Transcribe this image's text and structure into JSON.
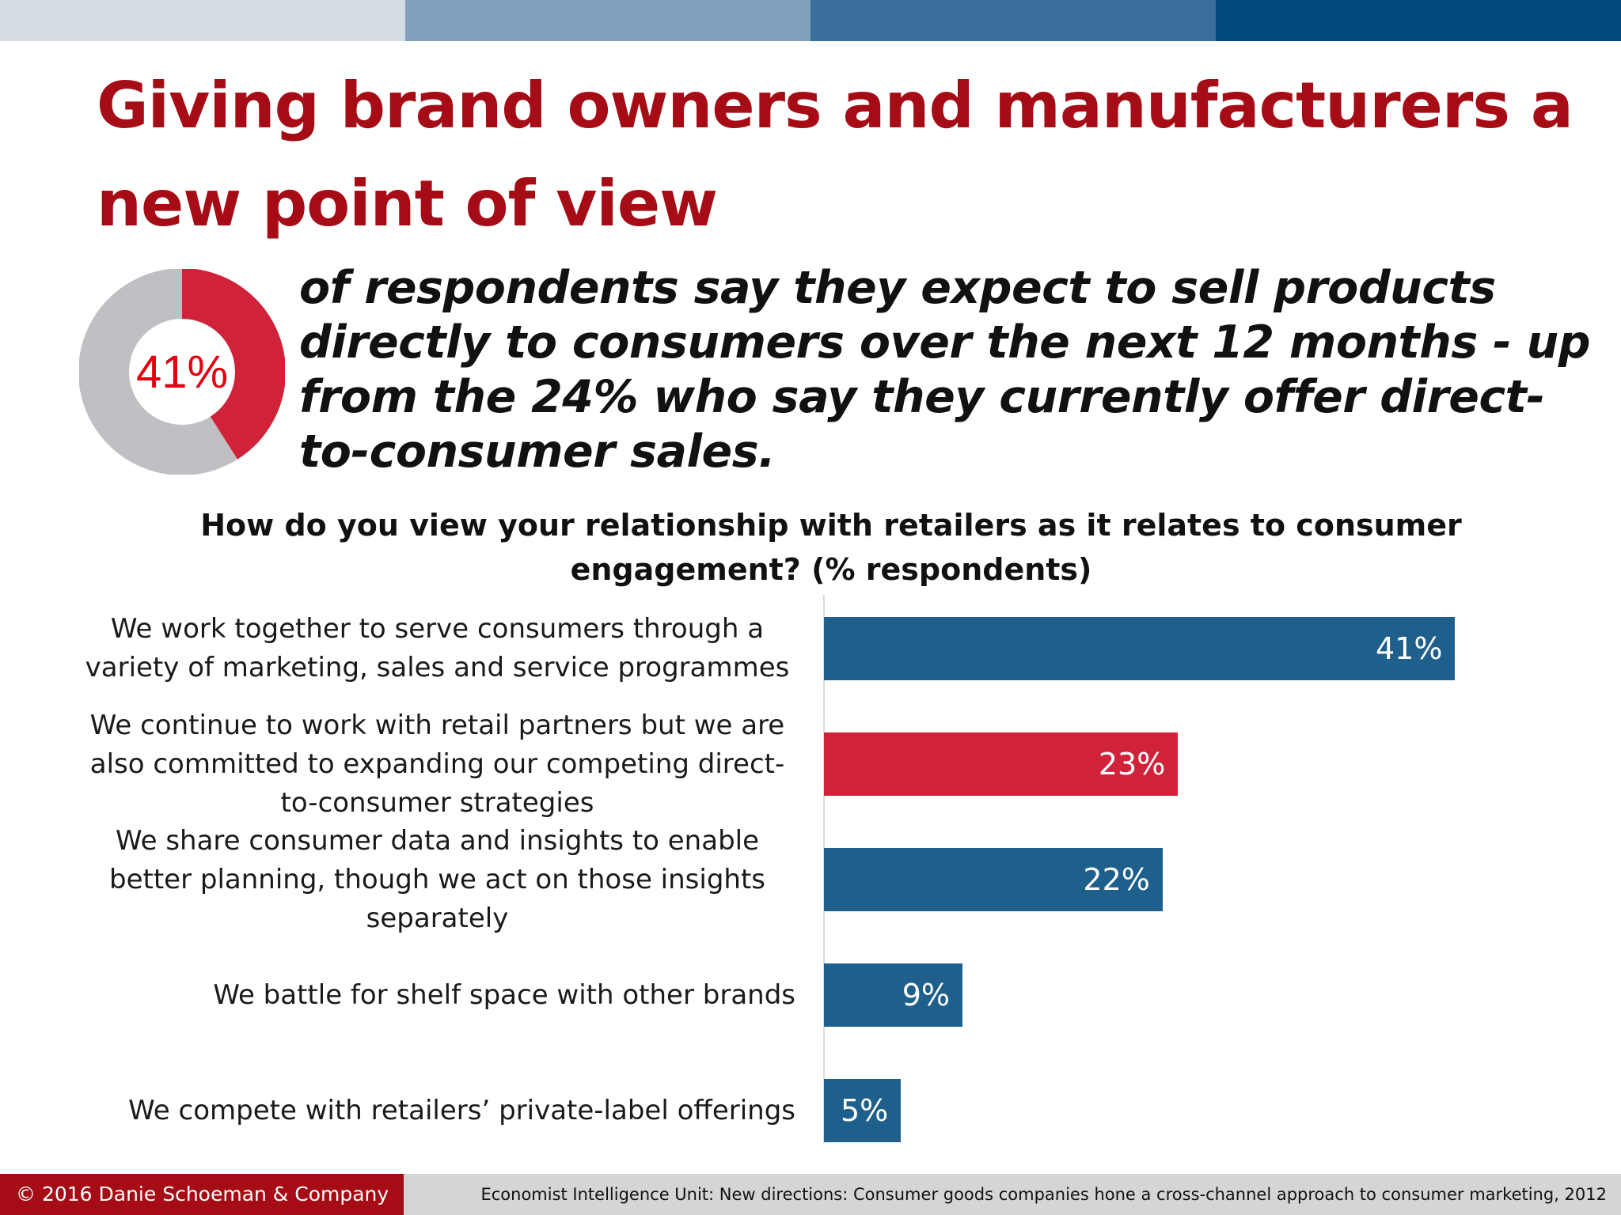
{
  "colors": {
    "title": "#a50c15",
    "bar_default": "#1f5f8b",
    "bar_highlight": "#d0233a",
    "donut_filled": "#d0233a",
    "donut_rest": "#c0bfc3",
    "band": [
      "#d4dce4",
      "#7fa1bf",
      "#3a6e9b",
      "#024a7e"
    ]
  },
  "slide": {
    "title": "Giving brand owners and manufacturers a new point of view"
  },
  "stat": {
    "value": 41,
    "label": "41%",
    "text": "of respondents say they expect to sell products directly to consumers over the next 12 months - up from the 24% who say they currently offer direct-to-consumer sales."
  },
  "chart_data": {
    "type": "bar",
    "orientation": "horizontal",
    "title": "How do you view your relationship with retailers as it relates to consumer engagement? (% respondents)",
    "categories": [
      "We work together to serve consumers through a variety of marketing, sales and service programmes",
      "We continue to work with retail partners but we are also committed to expanding our competing direct-to-consumer strategies",
      "We share consumer data and insights to enable better planning, though we act on those insights separately",
      "We battle for shelf space with other brands",
      "We compete with retailers’ private-label offerings"
    ],
    "values": [
      41,
      23,
      22,
      9,
      5
    ],
    "value_labels": [
      "41%",
      "23%",
      "22%",
      "9%",
      "5%"
    ],
    "highlight_index": 1,
    "xlim": [
      0,
      45
    ],
    "grid": false,
    "legend": "none"
  },
  "footer": {
    "copyright": "© 2016 Danie Schoeman & Company",
    "source": "Economist Intelligence Unit: New directions: Consumer goods companies hone a cross-channel approach to consumer marketing, 2012"
  }
}
